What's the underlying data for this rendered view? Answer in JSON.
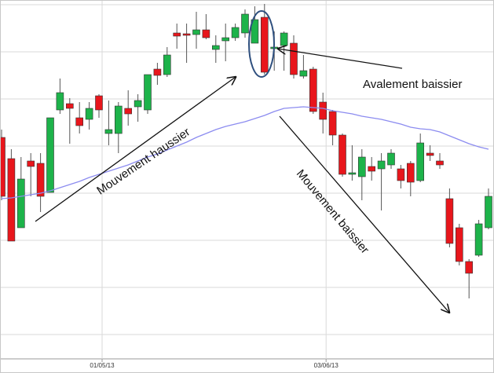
{
  "chart_data": {
    "type": "candlestick",
    "categories": [
      null,
      null,
      null,
      null,
      null,
      null,
      null,
      null,
      null,
      null,
      "01/05/13",
      null,
      null,
      null,
      null,
      null,
      null,
      null,
      null,
      null,
      null,
      null,
      null,
      null,
      null,
      null,
      null,
      null,
      null,
      null,
      null,
      null,
      null,
      "03/06/13",
      null,
      null,
      null,
      null,
      null,
      null,
      null,
      null,
      null,
      null,
      null,
      null,
      null,
      null,
      null,
      null,
      null
    ],
    "open": [
      285,
      258,
      170,
      255,
      252,
      215,
      320,
      328,
      310,
      308,
      338,
      290,
      290,
      322,
      324,
      320,
      372,
      365,
      418,
      417,
      416,
      422,
      397,
      408,
      412,
      418,
      405,
      438,
      398,
      402,
      405,
      363,
      372,
      330,
      318,
      288,
      238,
      235,
      248,
      245,
      250,
      245,
      252,
      230,
      265,
      255,
      207,
      170,
      127,
      135,
      170
    ],
    "high": [
      295,
      270,
      260,
      265,
      265,
      310,
      360,
      335,
      330,
      330,
      340,
      332,
      330,
      345,
      340,
      365,
      380,
      400,
      430,
      430,
      445,
      442,
      415,
      430,
      430,
      448,
      452,
      455,
      420,
      420,
      415,
      390,
      375,
      342,
      320,
      290,
      275,
      270,
      260,
      265,
      270,
      250,
      255,
      290,
      275,
      265,
      220,
      175,
      130,
      180,
      220
    ],
    "low": [
      205,
      153,
      170,
      210,
      190,
      215,
      315,
      277,
      290,
      295,
      310,
      275,
      265,
      300,
      305,
      315,
      352,
      362,
      398,
      380,
      398,
      410,
      380,
      382,
      408,
      412,
      405,
      365,
      370,
      370,
      360,
      360,
      315,
      290,
      275,
      235,
      230,
      205,
      230,
      192,
      245,
      220,
      210,
      228,
      255,
      245,
      145,
      122,
      80,
      133,
      168
    ],
    "close": [
      210,
      153,
      232,
      248,
      210,
      310,
      342,
      322,
      300,
      322,
      320,
      295,
      325,
      315,
      332,
      365,
      364,
      390,
      414,
      415,
      422,
      412,
      402,
      412,
      425,
      442,
      435,
      368,
      400,
      418,
      365,
      370,
      318,
      308,
      288,
      238,
      240,
      260,
      242,
      255,
      265,
      230,
      228,
      278,
      262,
      250,
      150,
      127,
      112,
      175,
      210
    ],
    "up_color": "#1db34a",
    "down_color": "#e8161c",
    "moving_average": {
      "color": "#8c8cf0",
      "values": [
        207,
        208,
        210,
        212,
        214,
        217,
        221,
        225,
        229,
        234,
        238,
        242,
        246,
        250,
        255,
        260,
        264,
        269,
        274,
        279,
        285,
        290,
        295,
        299,
        302,
        305,
        309,
        313,
        318,
        322,
        323,
        324,
        323,
        322,
        319,
        317,
        315,
        312,
        310,
        308,
        305,
        302,
        298,
        296,
        295,
        292,
        287,
        282,
        277,
        273,
        270
      ]
    },
    "ylim": [
      0,
      460
    ],
    "yticks": [
      34,
      94,
      154,
      214,
      274,
      334,
      394,
      454
    ],
    "grid": true,
    "annotations": [
      "Mouvement haussier",
      "Mouvement baissier",
      "Avalement baissier"
    ]
  }
}
